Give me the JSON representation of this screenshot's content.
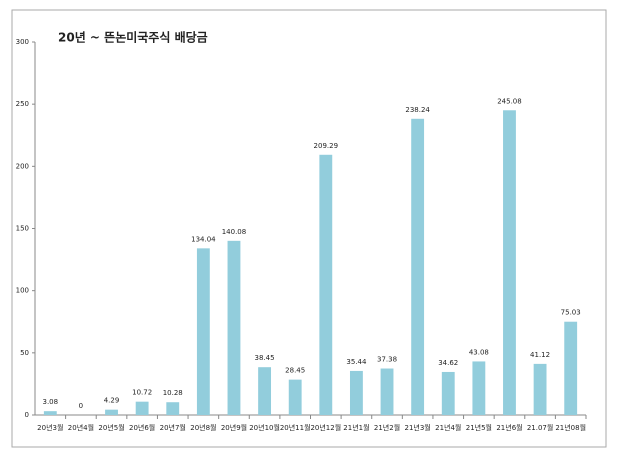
{
  "chart_data": {
    "type": "bar",
    "title": "20년 ~ 뜬논미국주식 배당금",
    "categories": [
      "20년3월",
      "20년4월",
      "20년5월",
      "20년6월",
      "20년7월",
      "20년8월",
      "20년9월",
      "20년10월",
      "20년11월",
      "20년12월",
      "21년1월",
      "21년2월",
      "21년3월",
      "21년4월",
      "21년5월",
      "21년6월",
      "21.07월",
      "21년08월"
    ],
    "values": [
      3.08,
      0,
      4.29,
      10.72,
      10.28,
      134.04,
      140.08,
      38.45,
      28.45,
      209.29,
      35.44,
      37.38,
      238.24,
      34.62,
      43.08,
      245.08,
      41.12,
      75.03
    ],
    "color": "#92cddc",
    "ylim": [
      0,
      300
    ],
    "yticks": [
      0,
      50,
      100,
      150,
      200,
      250,
      300
    ],
    "grid": false
  }
}
